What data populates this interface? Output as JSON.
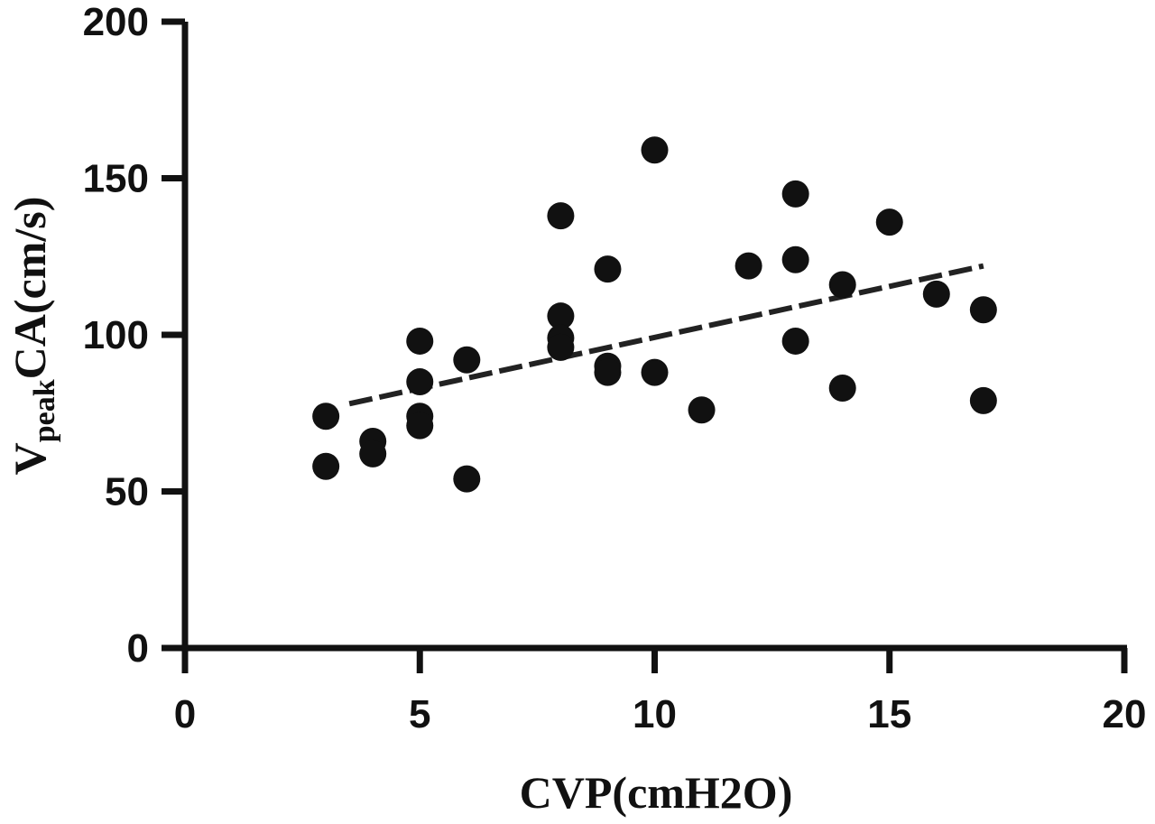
{
  "chart_data": {
    "type": "scatter",
    "title": "",
    "xlabel": "CVP(cmH2O)",
    "ylabel": {
      "prefix": "V",
      "subscript": "peak",
      "suffix": "CA(cm/s)"
    },
    "xlim": [
      0,
      20
    ],
    "ylim": [
      0,
      200
    ],
    "x_ticks": [
      0,
      5,
      10,
      15,
      20
    ],
    "y_ticks": [
      0,
      50,
      100,
      150,
      200
    ],
    "grid": false,
    "legend": "none",
    "series": [
      {
        "points": [
          {
            "x": 3,
            "y": 74
          },
          {
            "x": 3,
            "y": 58
          },
          {
            "x": 4,
            "y": 66
          },
          {
            "x": 4,
            "y": 62
          },
          {
            "x": 5,
            "y": 98
          },
          {
            "x": 5,
            "y": 85
          },
          {
            "x": 5,
            "y": 74
          },
          {
            "x": 5,
            "y": 71
          },
          {
            "x": 6,
            "y": 92
          },
          {
            "x": 6,
            "y": 54
          },
          {
            "x": 8,
            "y": 138
          },
          {
            "x": 8,
            "y": 106
          },
          {
            "x": 8,
            "y": 99
          },
          {
            "x": 8,
            "y": 96
          },
          {
            "x": 9,
            "y": 121
          },
          {
            "x": 9,
            "y": 90
          },
          {
            "x": 9,
            "y": 88
          },
          {
            "x": 10,
            "y": 159
          },
          {
            "x": 10,
            "y": 88
          },
          {
            "x": 11,
            "y": 76
          },
          {
            "x": 12,
            "y": 122
          },
          {
            "x": 13,
            "y": 145
          },
          {
            "x": 13,
            "y": 124
          },
          {
            "x": 13,
            "y": 98
          },
          {
            "x": 14,
            "y": 116
          },
          {
            "x": 14,
            "y": 83
          },
          {
            "x": 15,
            "y": 136
          },
          {
            "x": 16,
            "y": 113
          },
          {
            "x": 17,
            "y": 108
          },
          {
            "x": 17,
            "y": 79
          }
        ]
      }
    ],
    "trendline": {
      "style": "dashed",
      "x_start": 3.5,
      "y_start": 78,
      "x_end": 17,
      "y_end": 122
    },
    "colors": {
      "marker": "#111111",
      "axis": "#111111",
      "trendline": "#222222"
    }
  }
}
